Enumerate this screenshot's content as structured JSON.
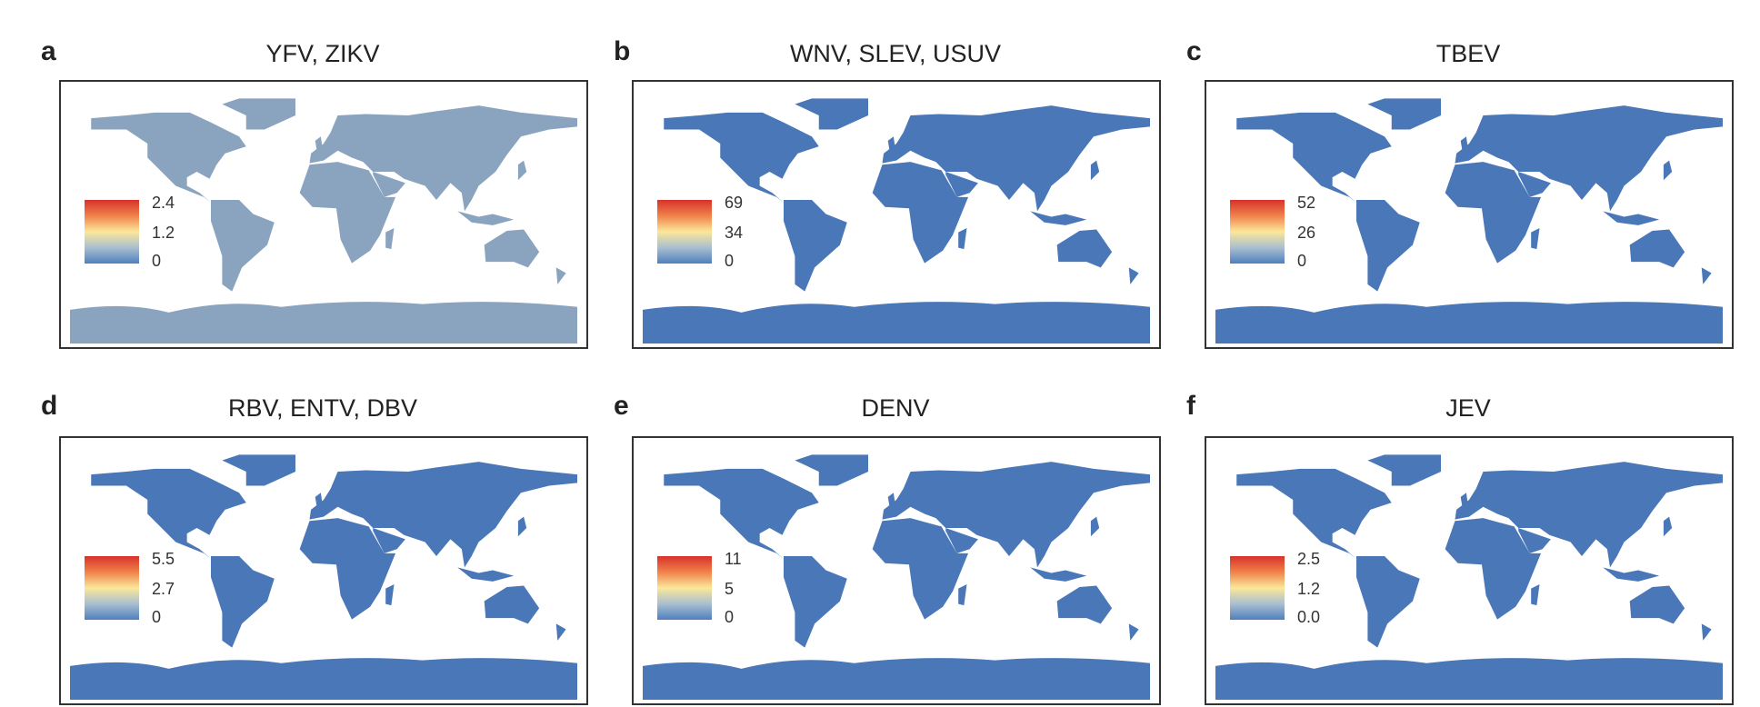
{
  "colors": {
    "land_blue": "#4a77b8",
    "land_grey": "#8aa3be",
    "scale_low": "#4f7fbf",
    "scale_mid": "#fbe79a",
    "scale_high": "#d7322a",
    "border": "#333333"
  },
  "panels": [
    {
      "letter": "a",
      "title": "YFV, ZIKV",
      "legend": {
        "max": "2.4",
        "mid": "1.2",
        "min": "0"
      }
    },
    {
      "letter": "b",
      "title": "WNV, SLEV, USUV",
      "legend": {
        "max": "69",
        "mid": "34",
        "min": "0"
      }
    },
    {
      "letter": "c",
      "title": "TBEV",
      "legend": {
        "max": "52",
        "mid": "26",
        "min": "0"
      }
    },
    {
      "letter": "d",
      "title": "RBV, ENTV, DBV",
      "legend": {
        "max": "5.5",
        "mid": "2.7",
        "min": "0"
      }
    },
    {
      "letter": "e",
      "title": "DENV",
      "legend": {
        "max": "11",
        "mid": "5",
        "min": "0"
      }
    },
    {
      "letter": "f",
      "title": "JEV",
      "legend": {
        "max": "2.5",
        "mid": "1.2",
        "min": "0.0"
      }
    }
  ]
}
